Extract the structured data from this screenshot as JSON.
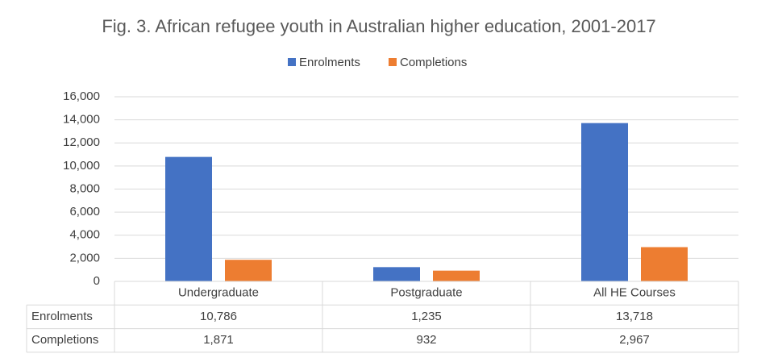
{
  "chart_data": {
    "type": "bar",
    "title": "Fig. 3. African refugee youth in Australian higher education, 2001-2017",
    "categories": [
      "Undergraduate",
      "Postgraduate",
      "All HE Courses"
    ],
    "series": [
      {
        "name": "Enrolments",
        "color": "#4472c4",
        "values": [
          10786,
          1235,
          13718
        ],
        "value_labels": [
          "10,786",
          "1,235",
          "13,718"
        ]
      },
      {
        "name": "Completions",
        "color": "#ed7d31",
        "values": [
          1871,
          932,
          2967
        ],
        "value_labels": [
          "1,871",
          "932",
          "2,967"
        ]
      }
    ],
    "ylim": [
      0,
      16000
    ],
    "yticks": [
      0,
      {
        "value": 2000,
        "label": "2,000"
      },
      {
        "value": 4000,
        "label": "4,000"
      },
      {
        "value": 6000,
        "label": "6,000"
      },
      {
        "value": 8000,
        "label": "8,000"
      },
      {
        "value": 10000,
        "label": "10,000"
      },
      {
        "value": 12000,
        "label": "12,000"
      },
      {
        "value": 14000,
        "label": "14,000"
      },
      {
        "value": 16000,
        "label": "16,000"
      }
    ],
    "grid": true,
    "legend": "top",
    "data_table": true
  }
}
